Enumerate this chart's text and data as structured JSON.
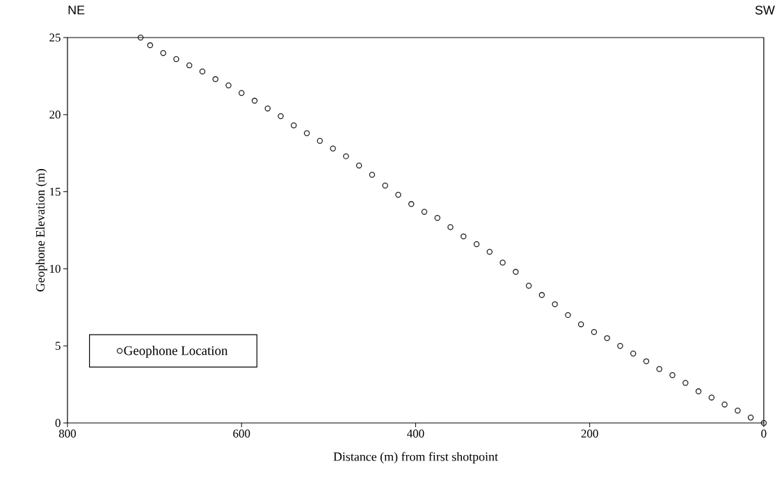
{
  "chart_data": {
    "type": "scatter",
    "xlabel": "Distance (m) from first shotpoint",
    "ylabel": "Geophone Elevation (m)",
    "annotations": [
      "NE",
      "SW"
    ],
    "x": [
      0,
      15,
      30,
      45,
      60,
      75,
      90,
      105,
      120,
      135,
      150,
      165,
      180,
      195,
      210,
      225,
      240,
      255,
      270,
      285,
      300,
      315,
      330,
      345,
      360,
      375,
      390,
      405,
      420,
      435,
      450,
      465,
      480,
      495,
      510,
      525,
      540,
      555,
      570,
      585,
      600,
      615,
      630,
      645,
      660,
      675,
      690,
      705,
      716
    ],
    "series": [
      {
        "name": "Geophone Location",
        "color": "#231f20",
        "values": [
          0,
          0.35,
          0.8,
          1.2,
          1.65,
          2.05,
          2.6,
          3.1,
          3.5,
          4.0,
          4.5,
          5.0,
          5.5,
          5.9,
          6.4,
          7.0,
          7.7,
          8.3,
          8.9,
          9.8,
          10.4,
          11.1,
          11.6,
          12.1,
          12.7,
          13.3,
          13.7,
          14.2,
          14.8,
          15.4,
          16.1,
          16.7,
          17.3,
          17.8,
          18.3,
          18.8,
          19.3,
          19.9,
          20.4,
          20.9,
          21.4,
          21.9,
          22.3,
          22.8,
          23.2,
          23.6,
          24.0,
          24.5,
          25.0
        ]
      }
    ],
    "xlim": [
      800,
      0
    ],
    "ylim": [
      0,
      25
    ],
    "xticks": [
      800,
      600,
      400,
      200,
      0
    ],
    "yticks": [
      0,
      5,
      10,
      15,
      20,
      25
    ],
    "marker": "circle",
    "grid": false,
    "legend": "bottom left"
  }
}
